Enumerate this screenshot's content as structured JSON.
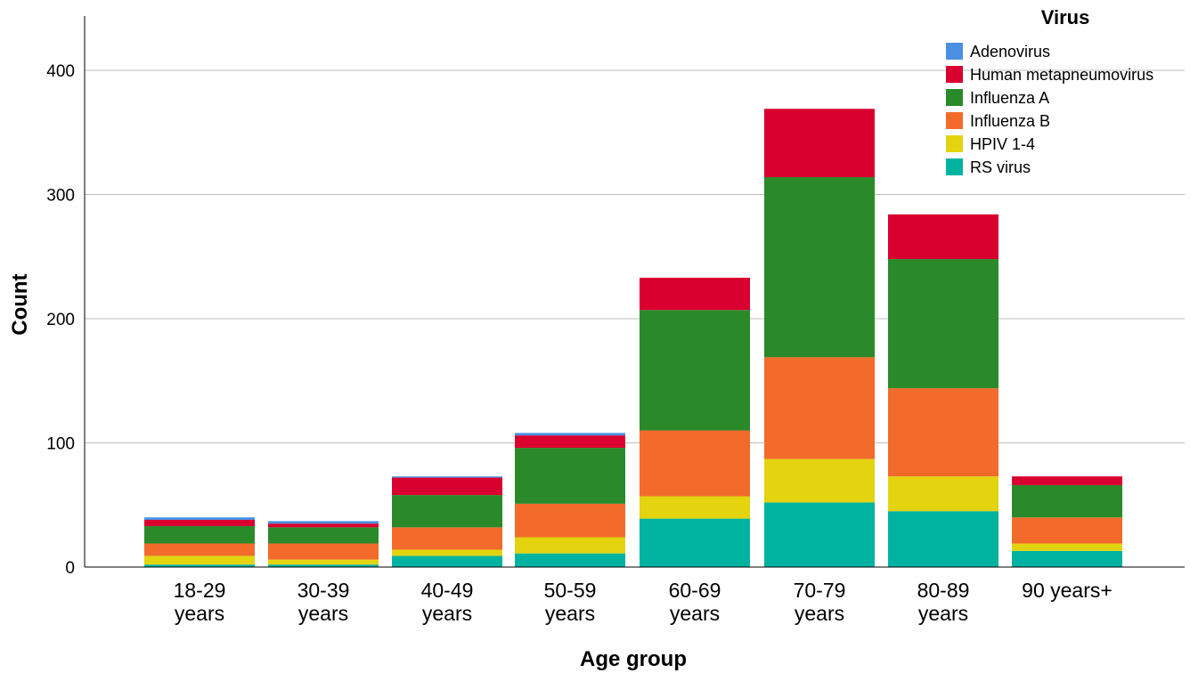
{
  "chart_data": {
    "type": "bar",
    "stacked": true,
    "title": "",
    "xlabel": "Age group",
    "ylabel": "Count",
    "ylim": [
      0,
      440
    ],
    "yticks": [
      0,
      100,
      200,
      300,
      400
    ],
    "grid": true,
    "legend_title": "Virus",
    "legend_position": "top-right",
    "categories": [
      [
        "18-29",
        "years"
      ],
      [
        "30-39",
        "years"
      ],
      [
        "40-49",
        "years"
      ],
      [
        "50-59",
        "years"
      ],
      [
        "60-69",
        "years"
      ],
      [
        "70-79",
        "years"
      ],
      [
        "80-89",
        "years"
      ],
      [
        "90 years+"
      ]
    ],
    "series": [
      {
        "name": "RS virus",
        "color": "#00b3a1",
        "values": [
          2,
          2,
          9,
          11,
          39,
          52,
          45,
          13
        ]
      },
      {
        "name": "HPIV 1-4",
        "color": "#e3d40f",
        "values": [
          7,
          4,
          5,
          13,
          18,
          35,
          28,
          6
        ]
      },
      {
        "name": "Influenza B",
        "color": "#f26b2b",
        "values": [
          10,
          13,
          18,
          27,
          53,
          82,
          71,
          21
        ]
      },
      {
        "name": "Influenza A",
        "color": "#2a8a2a",
        "values": [
          14,
          13,
          26,
          45,
          97,
          145,
          104,
          26
        ]
      },
      {
        "name": "Human metapneumovirus",
        "color": "#d9002f",
        "values": [
          5,
          3,
          14,
          10,
          26,
          55,
          36,
          7
        ]
      },
      {
        "name": "Adenovirus",
        "color": "#4a90e2",
        "values": [
          2,
          2,
          1,
          2,
          0,
          0,
          0,
          0
        ]
      }
    ]
  }
}
